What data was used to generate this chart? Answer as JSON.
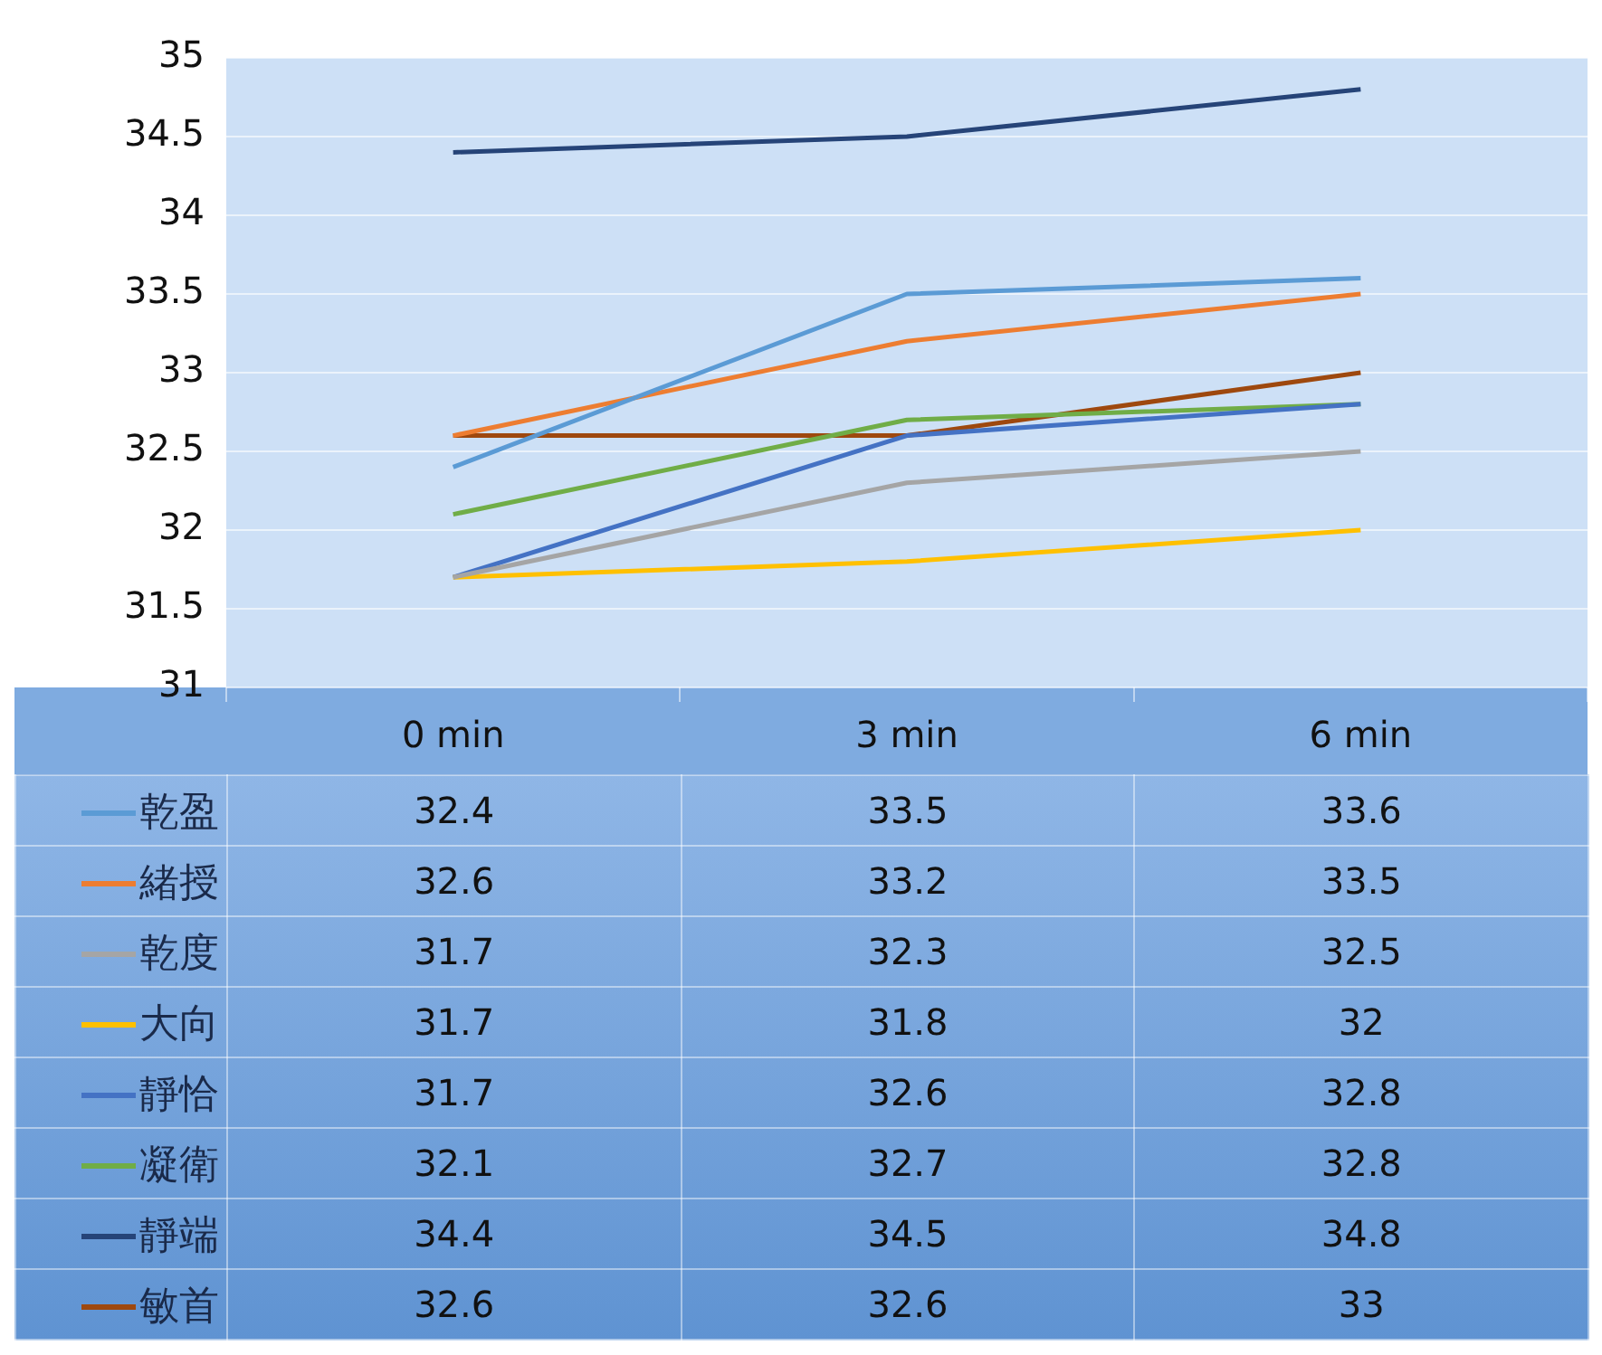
{
  "chart_data": {
    "type": "line",
    "categories": [
      "0 min",
      "3 min",
      "6 min"
    ],
    "series": [
      {
        "name": "乾盈",
        "color": "#5b9bd5",
        "values": [
          32.4,
          33.5,
          33.6
        ]
      },
      {
        "name": "緒授",
        "color": "#ed7d31",
        "values": [
          32.6,
          33.2,
          33.5
        ]
      },
      {
        "name": "乾度",
        "color": "#a5a5a5",
        "values": [
          31.7,
          32.3,
          32.5
        ]
      },
      {
        "name": "大向",
        "color": "#ffc000",
        "values": [
          31.7,
          31.8,
          32
        ]
      },
      {
        "name": "靜恰",
        "color": "#4472c4",
        "values": [
          31.7,
          32.6,
          32.8
        ]
      },
      {
        "name": "凝衛",
        "color": "#70ad47",
        "values": [
          32.1,
          32.7,
          32.8
        ]
      },
      {
        "name": "靜端",
        "color": "#264478",
        "values": [
          34.4,
          34.5,
          34.8
        ]
      },
      {
        "name": "敏首",
        "color": "#9e480e",
        "values": [
          32.6,
          32.6,
          33
        ]
      }
    ],
    "ylim": [
      31,
      35
    ],
    "yticks": [
      31,
      31.5,
      32,
      32.5,
      33,
      33.5,
      34,
      34.5,
      35
    ],
    "grid": "y",
    "legend": "bottom",
    "data_labels": true,
    "marker": "none"
  }
}
